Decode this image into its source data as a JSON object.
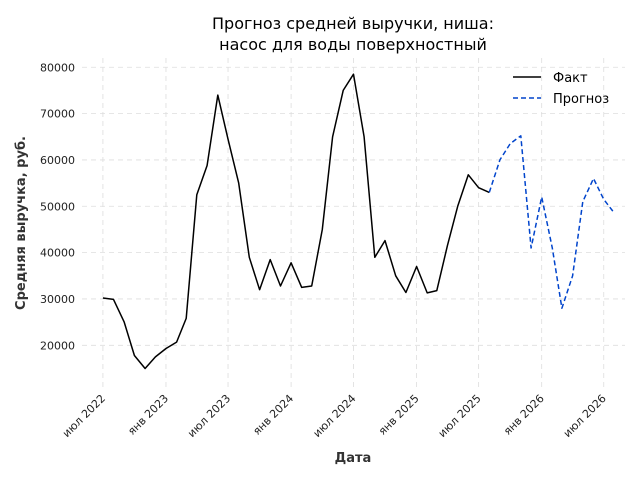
{
  "chart_data": {
    "type": "line",
    "title": "Прогноз средней выручки, ниша:",
    "subtitle": "насос для воды поверхностный",
    "xlabel": "Дата",
    "ylabel": "Средняя выручка, руб.",
    "x_tick_labels": [
      "июл 2022",
      "янв 2023",
      "июл 2023",
      "янв 2024",
      "июл 2024",
      "янв 2025",
      "июл 2025",
      "янв 2026",
      "июл 2026"
    ],
    "x_tick_dates": [
      "2022-07-01",
      "2023-01-01",
      "2023-07-01",
      "2024-01-01",
      "2024-07-01",
      "2025-01-01",
      "2025-07-01",
      "2026-01-01",
      "2026-07-01"
    ],
    "xlim": [
      "2022-05-01",
      "2026-09-01"
    ],
    "y_ticks": [
      20000,
      30000,
      40000,
      50000,
      60000,
      70000,
      80000
    ],
    "y_tick_labels": [
      "20000",
      "30000",
      "40000",
      "50000",
      "60000",
      "70000",
      "80000"
    ],
    "ylim": [
      11000,
      82000
    ],
    "grid": true,
    "legend_position": "top-right",
    "series": [
      {
        "name": "Факт",
        "color": "#000000",
        "style": "solid",
        "x": [
          "2022-07-01",
          "2022-08-01",
          "2022-09-01",
          "2022-10-01",
          "2022-11-01",
          "2022-12-01",
          "2023-01-01",
          "2023-02-01",
          "2023-03-01",
          "2023-04-01",
          "2023-05-01",
          "2023-06-01",
          "2023-07-01",
          "2023-08-01",
          "2023-09-01",
          "2023-10-01",
          "2023-11-01",
          "2023-12-01",
          "2024-01-01",
          "2024-02-01",
          "2024-03-01",
          "2024-04-01",
          "2024-05-01",
          "2024-06-01",
          "2024-07-01",
          "2024-08-01",
          "2024-09-01",
          "2024-10-01",
          "2024-11-01",
          "2024-12-01",
          "2025-01-01",
          "2025-02-01",
          "2025-03-01",
          "2025-04-01",
          "2025-05-01",
          "2025-06-01",
          "2025-07-01",
          "2025-08-01"
        ],
        "y": [
          30200,
          29900,
          25000,
          17800,
          15000,
          17500,
          19300,
          20700,
          25800,
          52500,
          58800,
          74000,
          64500,
          55000,
          39000,
          32000,
          38500,
          32800,
          37800,
          32500,
          32800,
          45000,
          65000,
          75000,
          78500,
          65000,
          39000,
          42600,
          35000,
          31400,
          37000,
          31300,
          31800,
          41500,
          50000,
          56800,
          54000,
          53000
        ]
      },
      {
        "name": "Прогноз",
        "color": "#0044cc",
        "style": "dashed",
        "x": [
          "2025-08-01",
          "2025-09-01",
          "2025-10-01",
          "2025-11-01",
          "2025-12-01",
          "2026-01-01",
          "2026-02-01",
          "2026-03-01",
          "2026-04-01",
          "2026-05-01",
          "2026-06-01",
          "2026-07-01",
          "2026-08-01"
        ],
        "y": [
          53000,
          60000,
          63500,
          65200,
          41000,
          52000,
          41000,
          28000,
          35000,
          51000,
          56000,
          51500,
          48500
        ]
      }
    ]
  }
}
